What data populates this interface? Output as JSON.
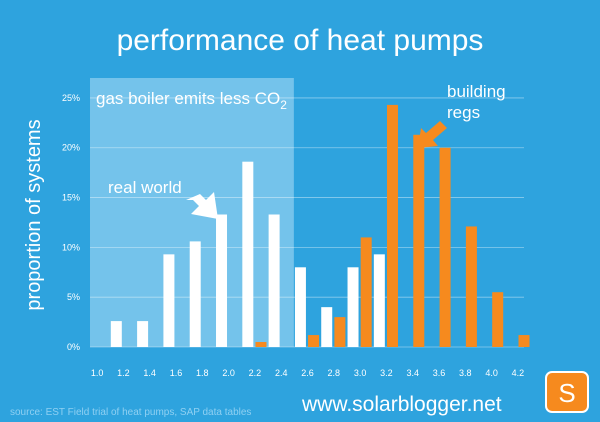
{
  "chart_data": {
    "type": "bar",
    "title": "performance of heat pumps",
    "ylabel": "proportion of systems",
    "x_ticks": [
      "1.0",
      "1.2",
      "1.4",
      "1.6",
      "1.8",
      "2.0",
      "2.2",
      "2.4",
      "2.6",
      "2.8",
      "3.0",
      "3.2",
      "3.4",
      "3.6",
      "3.8",
      "4.0",
      "4.2"
    ],
    "y_ticks": [
      "0%",
      "5%",
      "10%",
      "15%",
      "20%",
      "25%"
    ],
    "xlim": [
      0.95,
      4.25
    ],
    "ylim": [
      0,
      27
    ],
    "grid": true,
    "series": [
      {
        "name": "real world",
        "color": "#ffffff",
        "x": [
          1.15,
          1.35,
          1.55,
          1.75,
          1.95,
          2.15,
          2.35,
          2.55,
          2.75,
          2.95,
          3.15
        ],
        "values": [
          2.6,
          2.6,
          9.3,
          10.6,
          13.3,
          18.6,
          13.3,
          8.0,
          4.0,
          8.0,
          9.3
        ]
      },
      {
        "name": "building regs",
        "color": "#f68a1e",
        "x": [
          2.25,
          2.65,
          2.85,
          3.05,
          3.25,
          3.45,
          3.65,
          3.85,
          4.05,
          4.25
        ],
        "values": [
          0.5,
          1.2,
          3.0,
          11.0,
          24.3,
          21.3,
          20.0,
          12.1,
          5.5,
          1.2
        ]
      }
    ],
    "annotations": {
      "shaded_region_label_main": "gas boiler emits less CO",
      "shaded_region_label_sub": "2",
      "shaded_region_xmax": 2.5,
      "real_world_label": "real world",
      "building_regs_label_line1": "building",
      "building_regs_label_line2": "regs"
    }
  },
  "footer": {
    "source": "source: EST Field trial of heat pumps, SAP data tables",
    "website": "www.solarblogger.net",
    "logo_letter": "S"
  },
  "colors": {
    "background": "#2ea3de",
    "shade": "#8ccdef",
    "white_bar": "#ffffff",
    "orange_bar": "#f68a1e",
    "grid": "#7fc3ea",
    "logo": "#f68a1e"
  }
}
